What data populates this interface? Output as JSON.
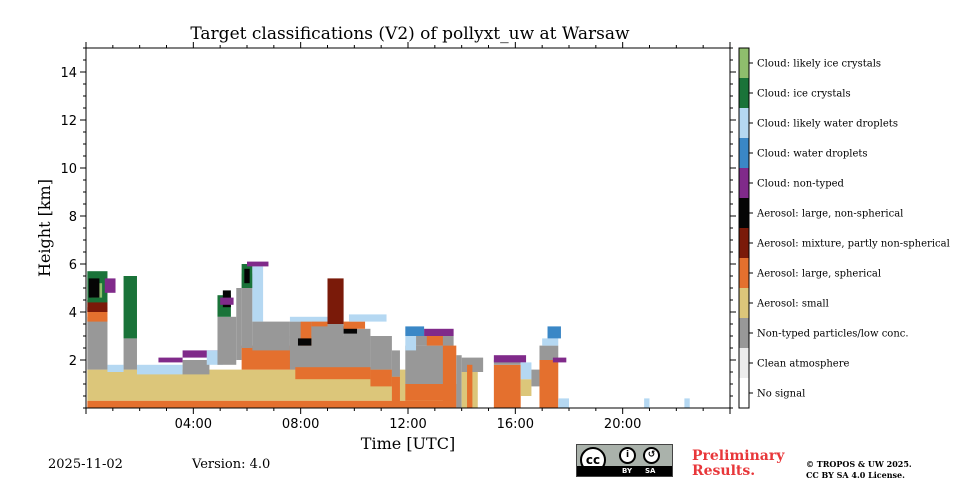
{
  "chart_data": {
    "type": "heatmap",
    "title": "Target classifications (V2) of pollyxt_uw at Warsaw",
    "xlabel": "Time [UTC]",
    "ylabel": "Height [km]",
    "xlim": [
      0,
      24
    ],
    "ylim": [
      0,
      15
    ],
    "xticks": [
      {
        "value": 4,
        "label": "04:00"
      },
      {
        "value": 8,
        "label": "08:00"
      },
      {
        "value": 12,
        "label": "12:00"
      },
      {
        "value": 16,
        "label": "16:00"
      },
      {
        "value": 20,
        "label": "20:00"
      }
    ],
    "yticks": [
      2,
      4,
      6,
      8,
      10,
      12,
      14
    ],
    "categories": [
      {
        "label": "No signal",
        "color": "#ffffff"
      },
      {
        "label": "Clean atmosphere",
        "color": "#ececec"
      },
      {
        "label": "Non-typed particles/low conc.",
        "color": "#989898"
      },
      {
        "label": "Aerosol: small",
        "color": "#dcc67a"
      },
      {
        "label": "Aerosol: large, spherical",
        "color": "#e4702e"
      },
      {
        "label": "Aerosol: mixture, partly non-spherical",
        "color": "#7a1a09"
      },
      {
        "label": "Aerosol: large, non-spherical",
        "color": "#050505"
      },
      {
        "label": "Cloud: non-typed",
        "color": "#802a8a"
      },
      {
        "label": "Cloud: water droplets",
        "color": "#3a87c6"
      },
      {
        "label": "Cloud: likely water droplets",
        "color": "#b5d8f2"
      },
      {
        "label": "Cloud: ice crystals",
        "color": "#1a7339"
      },
      {
        "label": "Cloud: likely ice crystals",
        "color": "#8fbe6d"
      }
    ],
    "regions": [
      {
        "class": 3,
        "t0": 0.05,
        "t1": 13.7,
        "h0": 0.3,
        "h1": 1.6
      },
      {
        "class": 4,
        "t0": 0.05,
        "t1": 13.8,
        "h0": 0.0,
        "h1": 0.3
      },
      {
        "class": 2,
        "t0": 0.05,
        "t1": 0.8,
        "h0": 1.6,
        "h1": 3.8
      },
      {
        "class": 2,
        "t0": 1.4,
        "t1": 1.9,
        "h0": 1.6,
        "h1": 2.9
      },
      {
        "class": 9,
        "t0": 0.8,
        "t1": 1.4,
        "h0": 1.5,
        "h1": 1.8
      },
      {
        "class": 4,
        "t0": 0.05,
        "t1": 0.8,
        "h0": 3.6,
        "h1": 4.2
      },
      {
        "class": 5,
        "t0": 0.05,
        "t1": 0.8,
        "h0": 4.0,
        "h1": 4.5
      },
      {
        "class": 10,
        "t0": 0.05,
        "t1": 0.8,
        "h0": 4.4,
        "h1": 5.7
      },
      {
        "class": 11,
        "t0": 0.2,
        "t1": 0.6,
        "h0": 4.6,
        "h1": 5.2
      },
      {
        "class": 6,
        "t0": 0.1,
        "t1": 0.5,
        "h0": 4.6,
        "h1": 5.4
      },
      {
        "class": 10,
        "t0": 1.4,
        "t1": 1.9,
        "h0": 2.9,
        "h1": 5.5
      },
      {
        "class": 7,
        "t0": 0.7,
        "t1": 1.1,
        "h0": 4.8,
        "h1": 5.4
      },
      {
        "class": 9,
        "t0": 1.9,
        "t1": 3.6,
        "h0": 1.4,
        "h1": 1.8
      },
      {
        "class": 7,
        "t0": 2.7,
        "t1": 3.6,
        "h0": 1.9,
        "h1": 2.1
      },
      {
        "class": 2,
        "t0": 3.6,
        "t1": 4.6,
        "h0": 1.4,
        "h1": 2.0
      },
      {
        "class": 7,
        "t0": 3.6,
        "t1": 4.9,
        "h0": 2.1,
        "h1": 2.4
      },
      {
        "class": 9,
        "t0": 4.5,
        "t1": 5.1,
        "h0": 1.8,
        "h1": 2.4
      },
      {
        "class": 2,
        "t0": 4.9,
        "t1": 5.6,
        "h0": 1.8,
        "h1": 3.8
      },
      {
        "class": 10,
        "t0": 4.9,
        "t1": 5.4,
        "h0": 3.8,
        "h1": 4.7
      },
      {
        "class": 6,
        "t0": 5.1,
        "t1": 5.4,
        "h0": 4.2,
        "h1": 4.9
      },
      {
        "class": 7,
        "t0": 5.0,
        "t1": 5.5,
        "h0": 4.3,
        "h1": 4.6
      },
      {
        "class": 2,
        "t0": 5.6,
        "t1": 5.8,
        "h0": 2.0,
        "h1": 5.0
      },
      {
        "class": 4,
        "t0": 5.8,
        "t1": 7.8,
        "h0": 1.6,
        "h1": 2.6
      },
      {
        "class": 2,
        "t0": 5.8,
        "t1": 6.2,
        "h0": 2.5,
        "h1": 5.6
      },
      {
        "class": 10,
        "t0": 5.8,
        "t1": 6.2,
        "h0": 5.0,
        "h1": 6.0
      },
      {
        "class": 6,
        "t0": 5.9,
        "t1": 6.1,
        "h0": 5.2,
        "h1": 5.8
      },
      {
        "class": 9,
        "t0": 6.2,
        "t1": 6.6,
        "h0": 3.6,
        "h1": 5.9
      },
      {
        "class": 2,
        "t0": 6.2,
        "t1": 7.6,
        "h0": 2.4,
        "h1": 3.6
      },
      {
        "class": 7,
        "t0": 6.0,
        "t1": 6.8,
        "h0": 5.9,
        "h1": 6.1
      },
      {
        "class": 2,
        "t0": 7.6,
        "t1": 10.6,
        "h0": 1.6,
        "h1": 3.0
      },
      {
        "class": 4,
        "t0": 7.8,
        "t1": 10.6,
        "h0": 1.2,
        "h1": 1.7
      },
      {
        "class": 2,
        "t0": 7.6,
        "t1": 8.4,
        "h0": 2.9,
        "h1": 3.6
      },
      {
        "class": 4,
        "t0": 8.0,
        "t1": 8.4,
        "h0": 2.6,
        "h1": 3.6
      },
      {
        "class": 6,
        "t0": 7.9,
        "t1": 8.4,
        "h0": 2.6,
        "h1": 2.9
      },
      {
        "class": 2,
        "t0": 8.4,
        "t1": 9.6,
        "h0": 3.0,
        "h1": 3.6
      },
      {
        "class": 4,
        "t0": 8.4,
        "t1": 9.0,
        "h0": 3.4,
        "h1": 3.7
      },
      {
        "class": 9,
        "t0": 7.6,
        "t1": 9.0,
        "h0": 3.6,
        "h1": 3.8
      },
      {
        "class": 5,
        "t0": 9.0,
        "t1": 9.6,
        "h0": 3.5,
        "h1": 5.4
      },
      {
        "class": 2,
        "t0": 9.6,
        "t1": 10.6,
        "h0": 3.0,
        "h1": 3.3
      },
      {
        "class": 6,
        "t0": 9.6,
        "t1": 10.1,
        "h0": 3.1,
        "h1": 3.4
      },
      {
        "class": 4,
        "t0": 9.6,
        "t1": 10.4,
        "h0": 3.3,
        "h1": 3.6
      },
      {
        "class": 9,
        "t0": 9.8,
        "t1": 11.2,
        "h0": 3.6,
        "h1": 3.9
      },
      {
        "class": 4,
        "t0": 10.6,
        "t1": 11.4,
        "h0": 0.9,
        "h1": 1.6
      },
      {
        "class": 2,
        "t0": 10.6,
        "t1": 11.4,
        "h0": 1.6,
        "h1": 3.0
      },
      {
        "class": 2,
        "t0": 11.4,
        "t1": 11.7,
        "h0": 1.3,
        "h1": 2.4
      },
      {
        "class": 4,
        "t0": 11.4,
        "t1": 11.7,
        "h0": 0.2,
        "h1": 1.3
      },
      {
        "class": 4,
        "t0": 11.9,
        "t1": 13.8,
        "h0": 0.3,
        "h1": 1.0
      },
      {
        "class": 2,
        "t0": 11.9,
        "t1": 13.7,
        "h0": 1.0,
        "h1": 2.6
      },
      {
        "class": 9,
        "t0": 11.9,
        "t1": 12.3,
        "h0": 2.4,
        "h1": 3.0
      },
      {
        "class": 2,
        "t0": 12.3,
        "t1": 13.7,
        "h0": 2.6,
        "h1": 3.0
      },
      {
        "class": 8,
        "t0": 11.9,
        "t1": 12.6,
        "h0": 3.0,
        "h1": 3.4
      },
      {
        "class": 7,
        "t0": 12.6,
        "t1": 13.7,
        "h0": 3.0,
        "h1": 3.3
      },
      {
        "class": 4,
        "t0": 12.7,
        "t1": 13.3,
        "h0": 2.6,
        "h1": 3.0
      },
      {
        "class": 4,
        "t0": 13.3,
        "t1": 13.8,
        "h0": 0.0,
        "h1": 2.6
      },
      {
        "class": 2,
        "t0": 13.8,
        "t1": 14.0,
        "h0": 0.0,
        "h1": 2.2
      },
      {
        "class": 3,
        "t0": 14.0,
        "t1": 14.6,
        "h0": 0.0,
        "h1": 1.5
      },
      {
        "class": 2,
        "t0": 14.0,
        "t1": 14.8,
        "h0": 1.5,
        "h1": 2.1
      },
      {
        "class": 4,
        "t0": 14.2,
        "t1": 14.4,
        "h0": 0.0,
        "h1": 1.8
      },
      {
        "class": 4,
        "t0": 15.2,
        "t1": 16.2,
        "h0": 0.0,
        "h1": 1.8
      },
      {
        "class": 2,
        "t0": 15.2,
        "t1": 16.2,
        "h0": 1.8,
        "h1": 2.0
      },
      {
        "class": 7,
        "t0": 15.2,
        "t1": 16.4,
        "h0": 1.9,
        "h1": 2.2
      },
      {
        "class": 3,
        "t0": 16.2,
        "t1": 16.6,
        "h0": 0.5,
        "h1": 1.2
      },
      {
        "class": 9,
        "t0": 16.2,
        "t1": 16.6,
        "h0": 1.2,
        "h1": 1.9
      },
      {
        "class": 2,
        "t0": 16.6,
        "t1": 16.9,
        "h0": 0.9,
        "h1": 1.6
      },
      {
        "class": 4,
        "t0": 16.9,
        "t1": 17.6,
        "h0": 0.0,
        "h1": 2.0
      },
      {
        "class": 2,
        "t0": 16.9,
        "t1": 17.6,
        "h0": 2.0,
        "h1": 2.6
      },
      {
        "class": 9,
        "t0": 17.0,
        "t1": 17.6,
        "h0": 2.6,
        "h1": 2.9
      },
      {
        "class": 8,
        "t0": 17.2,
        "t1": 17.7,
        "h0": 2.9,
        "h1": 3.4
      },
      {
        "class": 7,
        "t0": 17.4,
        "t1": 17.9,
        "h0": 1.9,
        "h1": 2.1
      },
      {
        "class": 9,
        "t0": 17.6,
        "t1": 18.0,
        "h0": 0.0,
        "h1": 0.4
      },
      {
        "class": 9,
        "t0": 20.8,
        "t1": 21.0,
        "h0": 0.0,
        "h1": 0.4
      },
      {
        "class": 9,
        "t0": 22.3,
        "t1": 22.5,
        "h0": 0.0,
        "h1": 0.4
      }
    ]
  },
  "footer": {
    "date": "2025-11-02",
    "version": "Version: 4.0",
    "license_badge": {
      "cc": "cc",
      "by": "BY",
      "sa": "SA"
    },
    "preliminary": "Preliminary Results.",
    "copyright_line1": "© TROPOS & UW 2025.",
    "copyright_line2": "CC BY SA 4.0 License."
  }
}
